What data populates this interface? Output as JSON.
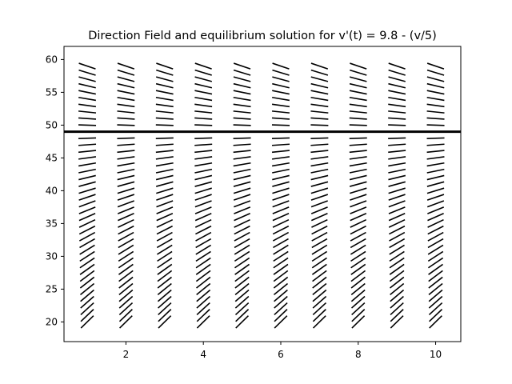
{
  "chart_data": {
    "type": "direction-field",
    "title": "Direction Field and equilibrium solution for v'(t) = 9.8 - (v/5)",
    "xlabel": "",
    "ylabel": "",
    "equation": {
      "a": 9.8,
      "b": 5
    },
    "xlim": [
      0.4,
      10.65
    ],
    "ylim": [
      17,
      62
    ],
    "x_ticks": [
      2,
      4,
      6,
      8,
      10
    ],
    "y_ticks": [
      20,
      25,
      30,
      35,
      40,
      45,
      50,
      55,
      60
    ],
    "field_x": [
      1,
      2,
      3,
      4,
      5,
      6,
      7,
      8,
      9,
      10
    ],
    "field_y_start": 20,
    "field_y_end": 59,
    "field_y_step": 1,
    "equilibrium_v": 49,
    "grid": false,
    "colors": {
      "segments": "#000000",
      "equilibrium": "#000000",
      "axes": "#000000"
    }
  }
}
